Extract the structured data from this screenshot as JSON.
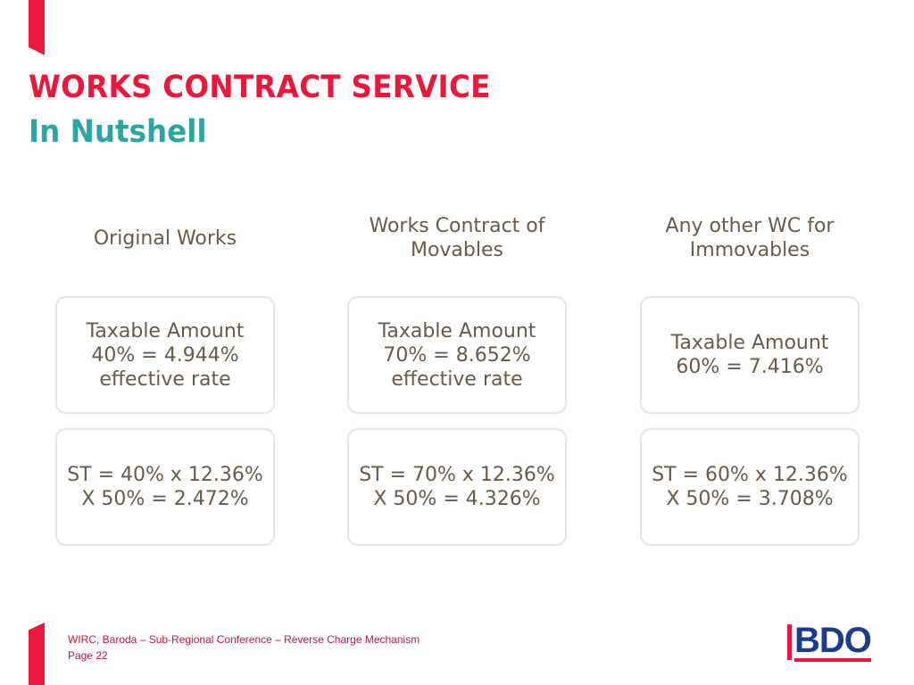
{
  "slide": {
    "title": "WORKS CONTRACT SERVICE",
    "subtitle": "In Nutshell"
  },
  "columns": [
    {
      "header": "Original Works",
      "taxable": "Taxable Amount\n40% = 4.944%\neffective rate",
      "service_tax": "ST = 40% x 12.36%\nX 50% = 2.472%"
    },
    {
      "header": "Works Contract of\nMovables",
      "taxable": "Taxable Amount\n70% = 8.652%\neffective rate",
      "service_tax": "ST = 70% x 12.36%\nX 50% = 4.326%"
    },
    {
      "header": "Any other WC for\nImmovables",
      "taxable": "Taxable Amount\n60% = 7.416%",
      "service_tax": "ST = 60% x 12.36%\nX 50% = 3.708%"
    }
  ],
  "footer": {
    "line1": "WIRC, Baroda – Sub-Regional Conference – Reverse Charge Mechanism",
    "line2": "Page 22"
  },
  "logo": {
    "text": "BDO"
  },
  "colors": {
    "accent_red": "#e8193c",
    "teal": "#2aa7a0",
    "body_text": "#6b5a4a",
    "logo_blue": "#1b3c8e"
  }
}
